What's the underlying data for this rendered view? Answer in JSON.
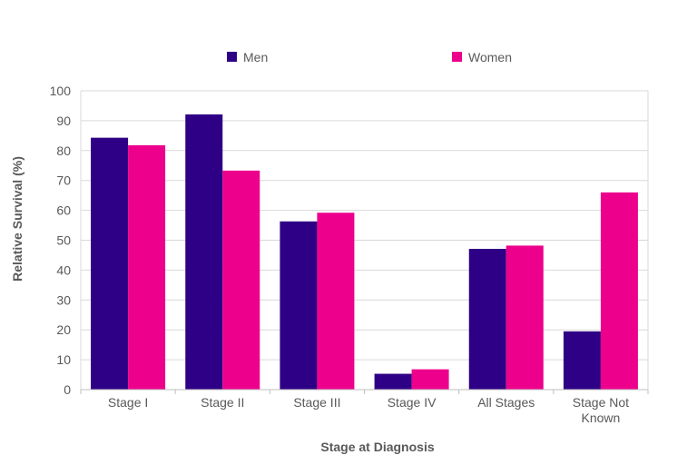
{
  "chart_data": {
    "type": "bar",
    "title": "",
    "xlabel": "Stage at Diagnosis",
    "ylabel": "Relative Survival (%)",
    "ylim": [
      0,
      100
    ],
    "yticks": [
      0,
      10,
      20,
      30,
      40,
      50,
      60,
      70,
      80,
      90,
      100
    ],
    "grid": true,
    "legend_position": "top",
    "categories": [
      [
        "Stage I"
      ],
      [
        "Stage II"
      ],
      [
        "Stage III"
      ],
      [
        "Stage IV"
      ],
      [
        "All Stages"
      ],
      [
        "Stage Not",
        "Known"
      ]
    ],
    "series": [
      {
        "name": "Men",
        "color": "#2E0085",
        "values": [
          84.3,
          92.1,
          56.3,
          5.3,
          47.1,
          19.5
        ]
      },
      {
        "name": "Women",
        "color": "#EC008C",
        "values": [
          81.8,
          73.3,
          59.2,
          6.8,
          48.2,
          66.0
        ]
      }
    ]
  }
}
